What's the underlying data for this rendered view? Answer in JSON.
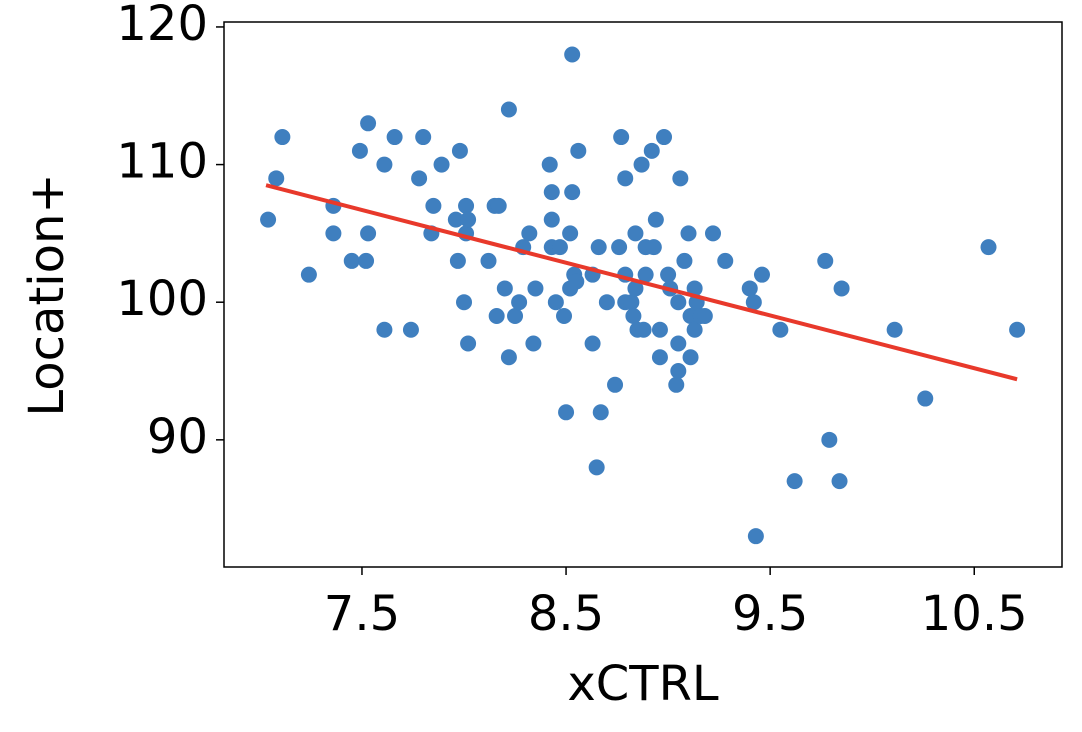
{
  "chart_data": {
    "type": "scatter",
    "xlabel": "xCTRL",
    "ylabel": "Location+",
    "xlim": [
      6.824,
      10.93
    ],
    "ylim": [
      80.76,
      120.36
    ],
    "xticks": [
      7.5,
      8.5,
      9.5,
      10.5
    ],
    "yticks": [
      90,
      100,
      110,
      120
    ],
    "grid": false,
    "series": [
      {
        "color": "#3f7fbf",
        "x": [
          7.04,
          7.08,
          7.11,
          7.24,
          7.36,
          7.36,
          7.45,
          7.49,
          7.52,
          7.53,
          7.53,
          7.61,
          7.61,
          7.66,
          7.74,
          7.78,
          7.8,
          7.84,
          7.85,
          7.89,
          7.96,
          7.97,
          7.98,
          8.0,
          8.01,
          8.01,
          8.02,
          8.02,
          8.12,
          8.15,
          8.16,
          8.17,
          8.2,
          8.22,
          8.22,
          8.25,
          8.27,
          8.29,
          8.32,
          8.34,
          8.35,
          8.42,
          8.43,
          8.43,
          8.43,
          8.45,
          8.47,
          8.49,
          8.5,
          8.52,
          8.52,
          8.53,
          8.53,
          8.54,
          8.55,
          8.56,
          8.63,
          8.63,
          8.65,
          8.66,
          8.67,
          8.7,
          8.74,
          8.76,
          8.77,
          8.79,
          8.79,
          8.79,
          8.82,
          8.83,
          8.84,
          8.84,
          8.85,
          8.87,
          8.88,
          8.89,
          8.89,
          8.92,
          8.93,
          8.94,
          8.96,
          8.96,
          8.98,
          9.0,
          9.01,
          9.04,
          9.05,
          9.05,
          9.05,
          9.06,
          9.08,
          9.1,
          9.11,
          9.11,
          9.13,
          9.13,
          9.14,
          9.16,
          9.18,
          9.22,
          9.28,
          9.4,
          9.42,
          9.43,
          9.46,
          9.55,
          9.62,
          9.77,
          9.79,
          9.84,
          9.85,
          10.11,
          10.26,
          10.57,
          10.71
        ],
        "values": [
          106,
          109,
          112,
          102,
          105,
          107,
          103,
          111,
          103,
          105,
          113,
          98,
          110,
          112,
          98,
          109,
          112,
          105,
          107,
          110,
          106,
          103,
          111,
          100,
          105,
          107,
          106,
          97,
          103,
          107,
          99,
          107,
          101,
          96,
          114,
          99,
          100,
          104,
          105,
          97,
          101,
          110,
          106,
          108,
          104,
          100,
          104,
          99,
          92,
          105,
          101,
          108,
          118,
          102,
          101.5,
          111,
          102,
          97,
          88,
          104,
          92,
          100,
          94,
          104,
          112,
          109,
          102,
          100,
          100,
          99,
          101,
          105,
          98,
          110,
          98,
          102,
          104,
          111,
          104,
          106,
          98,
          96,
          112,
          102,
          101,
          94,
          100,
          95,
          97,
          109,
          103,
          105,
          96,
          99,
          101,
          98,
          100,
          99,
          99,
          105,
          103,
          101,
          100,
          83,
          102,
          98,
          87,
          103,
          90,
          87,
          101,
          98,
          93,
          104,
          98
        ]
      }
    ],
    "trend_line": {
      "color": "#e8392b",
      "x": [
        7.03,
        10.71
      ],
      "y": [
        108.5,
        94.4
      ]
    }
  }
}
